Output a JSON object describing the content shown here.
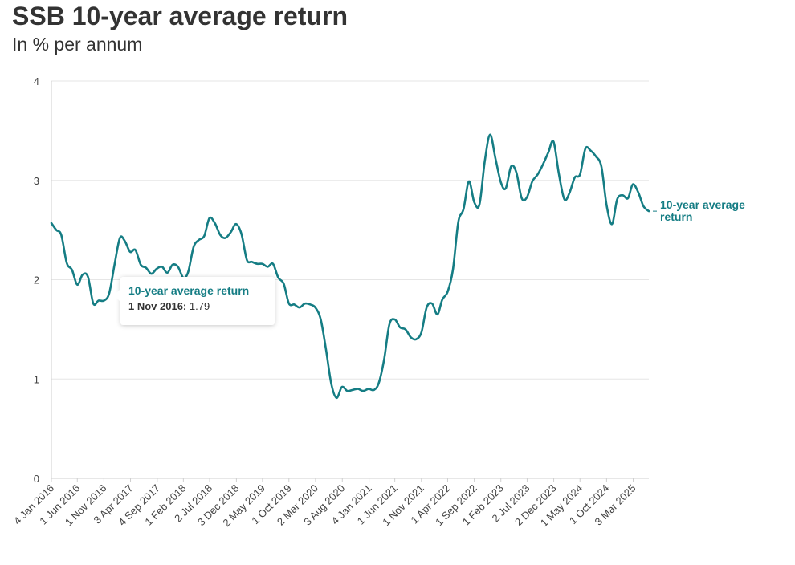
{
  "header": {
    "title": "SSB 10-year average return",
    "subtitle": "In % per annum"
  },
  "colors": {
    "line": "#157d84",
    "grid": "#e6e6e6",
    "text": "#333333"
  },
  "tooltip": {
    "series": "10-year average return",
    "date": "1 Nov 2016:",
    "value": "1.79"
  },
  "chart_data": {
    "type": "line",
    "title": "SSB 10-year average return",
    "subtitle": "In % per annum",
    "ylim": [
      0,
      4
    ],
    "yticks": [
      0,
      1,
      2,
      3,
      4
    ],
    "grid": "horizontal",
    "xlim": [
      "2016-01-04",
      "2025-06-01"
    ],
    "xticks": [
      "4 Jan 2016",
      "1 Jun 2016",
      "1 Nov 2016",
      "3 Apr 2017",
      "4 Sep 2017",
      "1 Feb 2018",
      "2 Jul 2018",
      "3 Dec 2018",
      "2 May 2019",
      "1 Oct 2019",
      "2 Mar 2020",
      "3 Aug 2020",
      "4 Jan 2021",
      "1 Jun 2021",
      "1 Nov 2021",
      "1 Apr 2022",
      "1 Sep 2022",
      "1 Feb 2023",
      "2 Jul 2023",
      "2 Dec 2023",
      "1 May 2024",
      "1 Oct 2024",
      "3 Mar 2025"
    ],
    "series": [
      {
        "name": "10-year average return",
        "label": "10-year average return",
        "x": [
          "2016-01-04",
          "2016-02-01",
          "2016-03-01",
          "2016-04-01",
          "2016-05-01",
          "2016-06-01",
          "2016-07-01",
          "2016-08-01",
          "2016-09-01",
          "2016-10-01",
          "2016-11-01",
          "2016-12-01",
          "2017-01-01",
          "2017-02-01",
          "2017-03-01",
          "2017-04-01",
          "2017-05-01",
          "2017-06-01",
          "2017-07-01",
          "2017-08-01",
          "2017-09-01",
          "2017-10-01",
          "2017-11-01",
          "2017-12-01",
          "2018-01-01",
          "2018-02-01",
          "2018-03-01",
          "2018-04-01",
          "2018-05-01",
          "2018-06-01",
          "2018-07-01",
          "2018-08-01",
          "2018-09-01",
          "2018-10-01",
          "2018-11-01",
          "2018-12-01",
          "2019-01-01",
          "2019-02-01",
          "2019-03-01",
          "2019-04-01",
          "2019-05-01",
          "2019-06-01",
          "2019-07-01",
          "2019-08-01",
          "2019-09-01",
          "2019-10-01",
          "2019-11-01",
          "2019-12-01",
          "2020-01-01",
          "2020-02-01",
          "2020-03-01",
          "2020-04-01",
          "2020-05-01",
          "2020-06-01",
          "2020-07-01",
          "2020-08-01",
          "2020-09-01",
          "2020-10-01",
          "2020-11-01",
          "2020-12-01",
          "2021-01-01",
          "2021-02-01",
          "2021-03-01",
          "2021-04-01",
          "2021-05-01",
          "2021-06-01",
          "2021-07-01",
          "2021-08-01",
          "2021-09-01",
          "2021-10-01",
          "2021-11-01",
          "2021-12-01",
          "2022-01-01",
          "2022-02-01",
          "2022-03-01",
          "2022-04-01",
          "2022-05-01",
          "2022-06-01",
          "2022-07-01",
          "2022-08-01",
          "2022-09-01",
          "2022-10-01",
          "2022-11-01",
          "2022-12-01",
          "2023-01-01",
          "2023-02-01",
          "2023-03-01",
          "2023-04-01",
          "2023-05-01",
          "2023-06-01",
          "2023-07-01",
          "2023-08-01",
          "2023-09-01",
          "2023-10-01",
          "2023-11-01",
          "2023-12-01",
          "2024-01-01",
          "2024-02-01",
          "2024-03-01",
          "2024-04-01",
          "2024-05-01",
          "2024-06-01",
          "2024-07-01",
          "2024-08-01",
          "2024-09-01",
          "2024-10-01",
          "2024-11-01",
          "2024-12-01",
          "2025-01-01",
          "2025-02-01",
          "2025-03-01",
          "2025-04-01",
          "2025-05-01",
          "2025-06-01"
        ],
        "y": [
          2.57,
          2.5,
          2.45,
          2.17,
          2.1,
          1.95,
          2.05,
          2.03,
          1.76,
          1.79,
          1.79,
          1.86,
          2.15,
          2.42,
          2.39,
          2.28,
          2.3,
          2.15,
          2.12,
          2.06,
          2.11,
          2.13,
          2.07,
          2.15,
          2.13,
          2.02,
          2.08,
          2.33,
          2.4,
          2.44,
          2.62,
          2.57,
          2.45,
          2.42,
          2.48,
          2.56,
          2.46,
          2.2,
          2.18,
          2.16,
          2.16,
          2.13,
          2.16,
          2.02,
          1.96,
          1.76,
          1.75,
          1.72,
          1.76,
          1.75,
          1.72,
          1.6,
          1.3,
          0.95,
          0.81,
          0.92,
          0.88,
          0.89,
          0.9,
          0.88,
          0.9,
          0.89,
          0.96,
          1.2,
          1.55,
          1.6,
          1.52,
          1.5,
          1.42,
          1.4,
          1.47,
          1.72,
          1.76,
          1.65,
          1.8,
          1.88,
          2.1,
          2.58,
          2.71,
          2.99,
          2.78,
          2.76,
          3.2,
          3.46,
          3.22,
          2.98,
          2.92,
          3.14,
          3.08,
          2.82,
          2.83,
          2.99,
          3.06,
          3.16,
          3.28,
          3.39,
          3.06,
          2.81,
          2.87,
          3.03,
          3.06,
          3.32,
          3.3,
          3.24,
          3.14,
          2.75,
          2.56,
          2.81,
          2.85,
          2.82,
          2.96,
          2.88,
          2.74,
          2.69
        ]
      }
    ]
  }
}
